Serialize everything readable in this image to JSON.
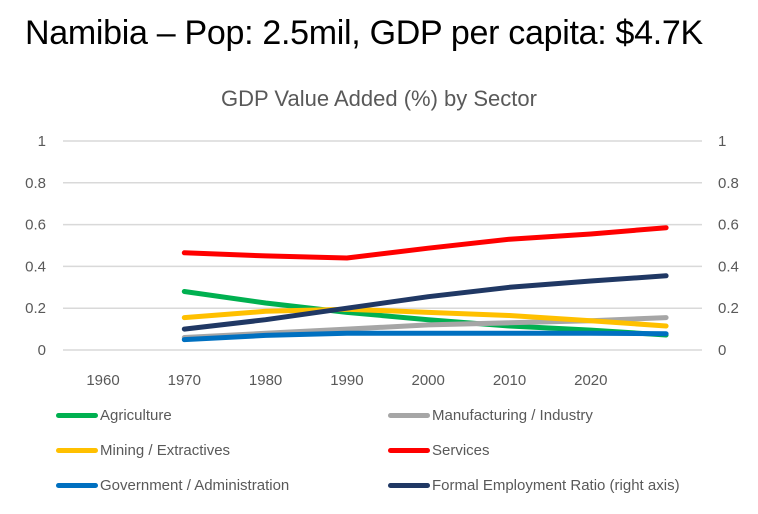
{
  "slide": {
    "title": "Namibia – Pop: 2.5mil, GDP per capita:  $4.7K"
  },
  "chart_data": {
    "type": "line",
    "title": "GDP Value Added (%) by Sector",
    "xlabel": "",
    "ylabel": "",
    "y2label": "",
    "categories": [
      "1960",
      "1970",
      "1980",
      "1990",
      "2000",
      "2010",
      "2020",
      ""
    ],
    "x_tick_labels": [
      "1960",
      "1970",
      "1980",
      "1990",
      "2000",
      "2010",
      "2020"
    ],
    "ylim": [
      0,
      1
    ],
    "y2lim": [
      0,
      1
    ],
    "y_ticks": [
      "0",
      "0.2",
      "0.4",
      "0.6",
      "0.8",
      "1"
    ],
    "y2_ticks": [
      "0",
      "0.2",
      "0.4",
      "0.6",
      "0.8",
      "1"
    ],
    "grid": true,
    "legend_position": "bottom",
    "series": [
      {
        "name": "Agriculture",
        "color": "#00B050",
        "axis": "left",
        "values": [
          null,
          0.28,
          0.225,
          0.18,
          0.145,
          0.115,
          0.095,
          0.072
        ]
      },
      {
        "name": "Manufacturing / Industry",
        "color": "#A6A6A6",
        "axis": "left",
        "values": [
          null,
          0.06,
          0.08,
          0.1,
          0.12,
          0.13,
          0.14,
          0.155
        ]
      },
      {
        "name": "Mining / Extractives",
        "color": "#FFC000",
        "axis": "left",
        "values": [
          null,
          0.155,
          0.185,
          0.195,
          0.18,
          0.165,
          0.14,
          0.115
        ]
      },
      {
        "name": "Services",
        "color": "#FF0000",
        "axis": "left",
        "values": [
          null,
          0.465,
          0.45,
          0.44,
          0.487,
          0.53,
          0.555,
          0.585
        ]
      },
      {
        "name": "Government / Administration",
        "color": "#0070C0",
        "axis": "left",
        "values": [
          null,
          0.05,
          0.07,
          0.08,
          0.08,
          0.08,
          0.08,
          0.078
        ]
      },
      {
        "name": "Formal Employment Ratio (right axis)",
        "color": "#203864",
        "axis": "right",
        "values": [
          null,
          0.1,
          0.145,
          0.2,
          0.255,
          0.3,
          0.33,
          0.355
        ]
      }
    ]
  }
}
